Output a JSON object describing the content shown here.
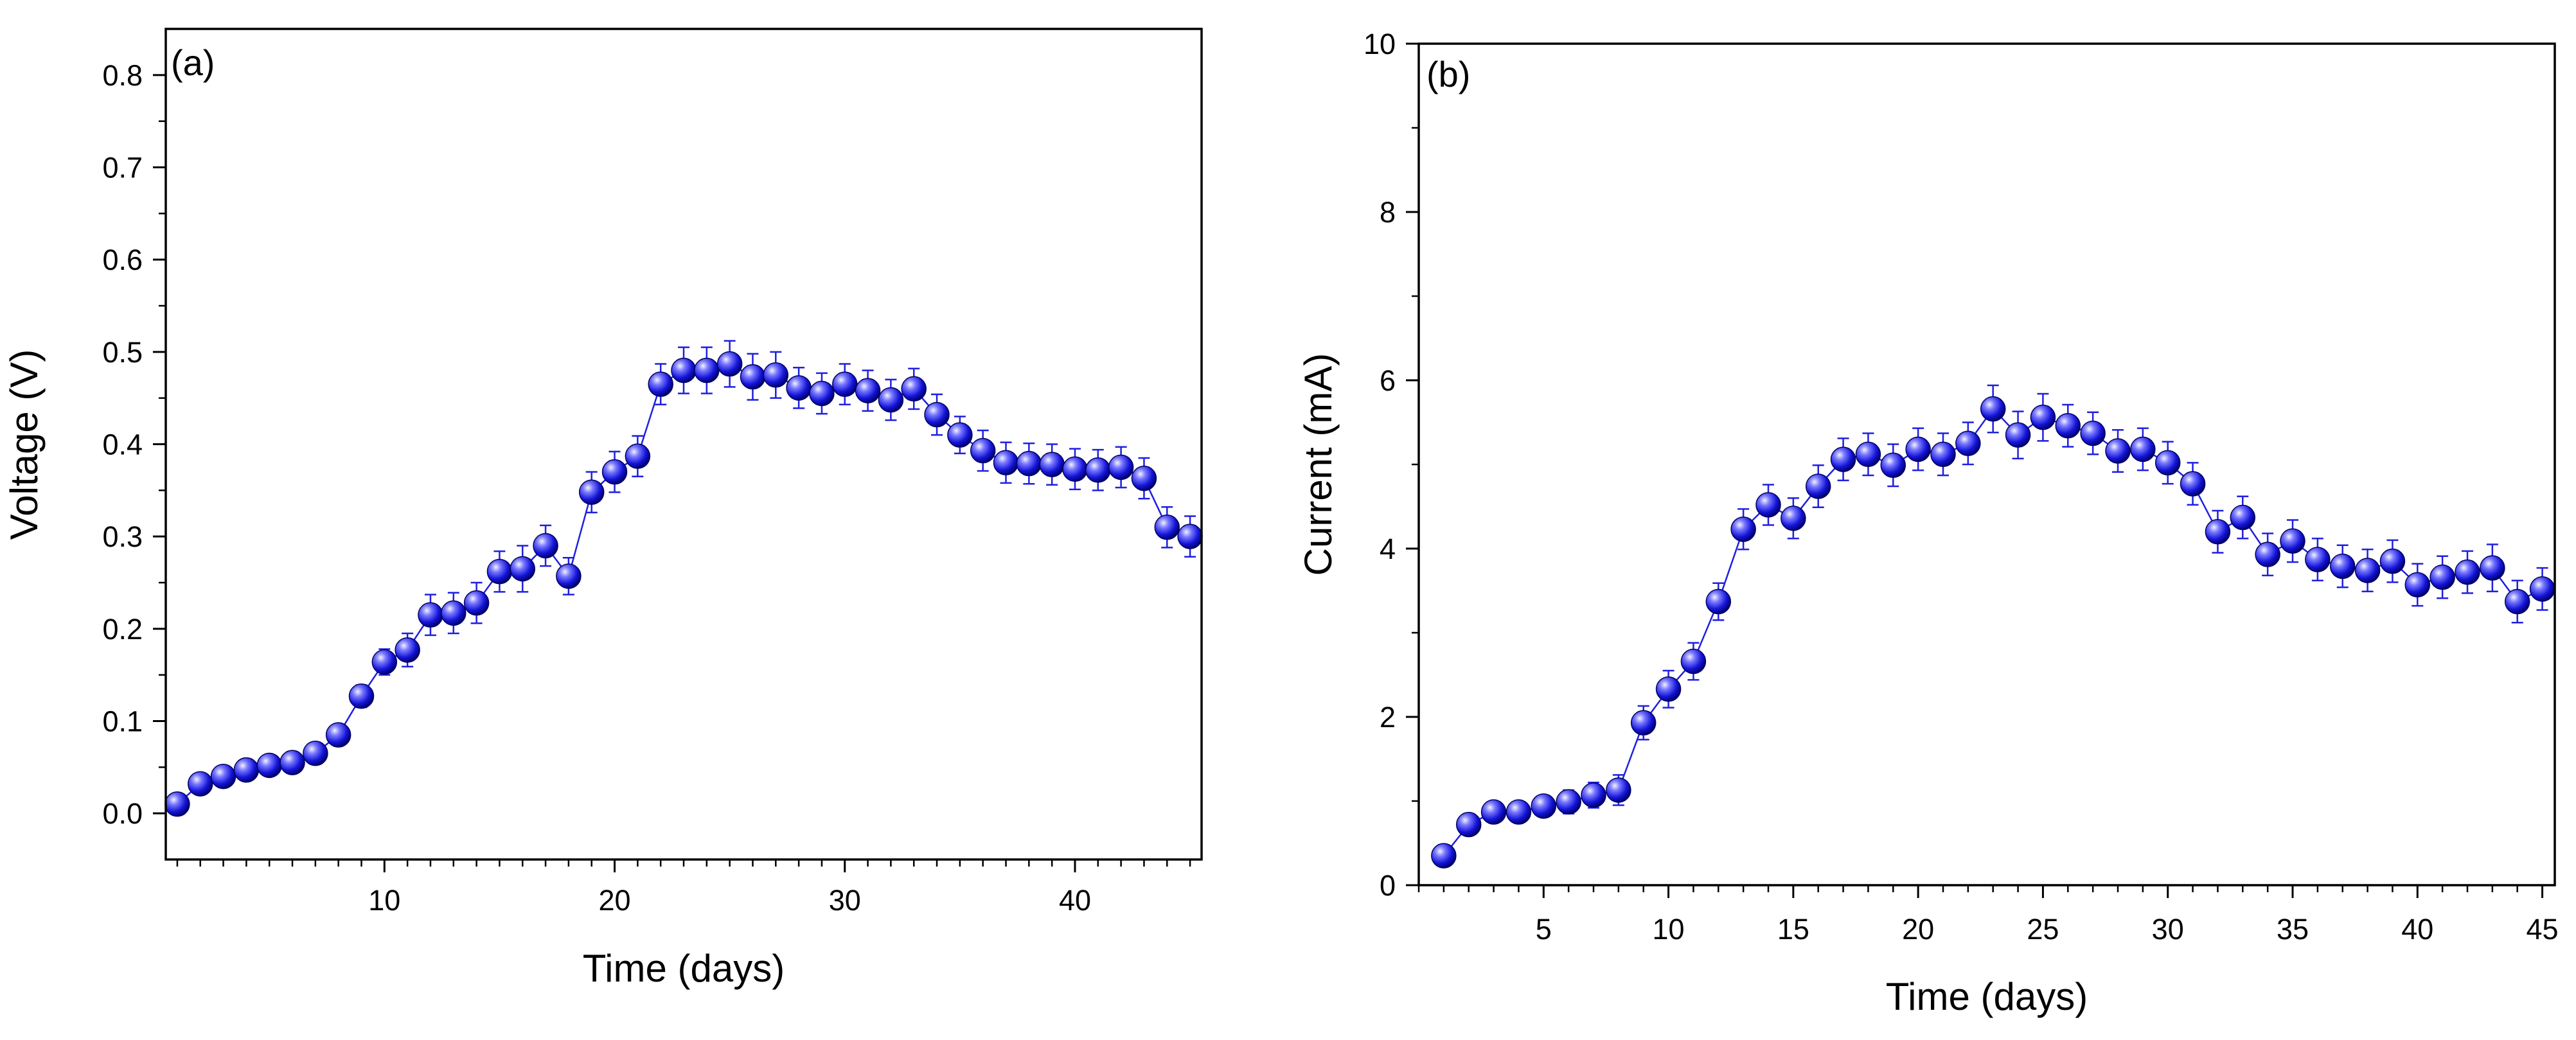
{
  "chart_data": [
    {
      "panel": "(a)",
      "type": "scatter",
      "style": "line with markers and error bars",
      "title": "",
      "xlabel": "Time (days)",
      "ylabel": "Voltage (V)",
      "xlim": [
        0.5,
        45.5
      ],
      "ylim": [
        -0.05,
        0.85
      ],
      "x_ticks": [
        10,
        20,
        30,
        40
      ],
      "x_tick_labels": [
        "10",
        "20",
        "30",
        "40"
      ],
      "y_ticks": [
        0.0,
        0.1,
        0.2,
        0.3,
        0.4,
        0.5,
        0.6,
        0.7,
        0.8
      ],
      "y_tick_labels": [
        "0.0",
        "0.1",
        "0.2",
        "0.3",
        "0.4",
        "0.5",
        "0.6",
        "0.7",
        "0.8"
      ],
      "series": [
        {
          "name": "Voltage",
          "color": "#1f1fe0",
          "x": [
            1,
            2,
            3,
            4,
            5,
            6,
            7,
            8,
            9,
            10,
            11,
            12,
            13,
            14,
            15,
            16,
            17,
            18,
            19,
            20,
            21,
            22,
            23,
            24,
            25,
            26,
            27,
            28,
            29,
            30,
            31,
            32,
            33,
            34,
            35,
            36,
            37,
            38,
            39,
            40,
            41,
            42,
            43,
            44,
            45
          ],
          "y": [
            0.01,
            0.032,
            0.04,
            0.047,
            0.052,
            0.055,
            0.065,
            0.085,
            0.127,
            0.164,
            0.177,
            0.215,
            0.217,
            0.228,
            0.262,
            0.265,
            0.29,
            0.257,
            0.348,
            0.37,
            0.387,
            0.465,
            0.48,
            0.48,
            0.487,
            0.473,
            0.475,
            0.461,
            0.455,
            0.465,
            0.458,
            0.448,
            0.46,
            0.432,
            0.41,
            0.393,
            0.38,
            0.379,
            0.378,
            0.373,
            0.372,
            0.375,
            0.363,
            0.31,
            0.3
          ],
          "error": [
            0.004,
            0.006,
            0.006,
            0.006,
            0.006,
            0.007,
            0.008,
            0.01,
            0.012,
            0.014,
            0.018,
            0.022,
            0.022,
            0.022,
            0.022,
            0.025,
            0.022,
            0.02,
            0.022,
            0.022,
            0.022,
            0.022,
            0.025,
            0.025,
            0.025,
            0.025,
            0.025,
            0.022,
            0.022,
            0.022,
            0.022,
            0.022,
            0.022,
            0.022,
            0.02,
            0.022,
            0.022,
            0.022,
            0.022,
            0.022,
            0.022,
            0.022,
            0.022,
            0.022,
            0.022
          ]
        }
      ]
    },
    {
      "panel": "(b)",
      "type": "scatter",
      "style": "line with markers and error bars",
      "title": "",
      "xlabel": "Time (days)",
      "ylabel": "Current (mA)",
      "xlim": [
        0,
        45.5
      ],
      "ylim": [
        0,
        10
      ],
      "x_ticks": [
        5,
        10,
        15,
        20,
        25,
        30,
        35,
        40,
        45
      ],
      "x_tick_labels": [
        "5",
        "10",
        "15",
        "20",
        "25",
        "30",
        "35",
        "40",
        "45"
      ],
      "y_ticks": [
        0,
        2,
        4,
        6,
        8,
        10
      ],
      "y_tick_labels": [
        "0",
        "2",
        "4",
        "6",
        "8",
        "10"
      ],
      "series": [
        {
          "name": "Current",
          "color": "#1f1fe0",
          "x": [
            1,
            2,
            3,
            4,
            5,
            6,
            7,
            8,
            9,
            10,
            11,
            12,
            13,
            14,
            15,
            16,
            17,
            18,
            19,
            20,
            21,
            22,
            23,
            24,
            25,
            26,
            27,
            28,
            29,
            30,
            31,
            32,
            33,
            34,
            35,
            36,
            37,
            38,
            39,
            40,
            41,
            42,
            43,
            44,
            45
          ],
          "y": [
            0.35,
            0.72,
            0.87,
            0.87,
            0.94,
            0.99,
            1.07,
            1.13,
            1.93,
            2.33,
            2.66,
            3.37,
            4.23,
            4.52,
            4.36,
            4.74,
            5.06,
            5.12,
            4.99,
            5.18,
            5.12,
            5.25,
            5.66,
            5.35,
            5.56,
            5.46,
            5.37,
            5.16,
            5.18,
            5.02,
            4.77,
            4.2,
            4.37,
            3.93,
            4.09,
            3.87,
            3.79,
            3.74,
            3.85,
            3.57,
            3.66,
            3.72,
            3.77,
            3.37,
            3.52
          ],
          "error": [
            0.1,
            0.12,
            0.12,
            0.12,
            0.12,
            0.14,
            0.15,
            0.18,
            0.2,
            0.22,
            0.22,
            0.22,
            0.24,
            0.24,
            0.24,
            0.25,
            0.25,
            0.25,
            0.25,
            0.25,
            0.25,
            0.25,
            0.28,
            0.28,
            0.28,
            0.25,
            0.25,
            0.25,
            0.25,
            0.25,
            0.25,
            0.25,
            0.25,
            0.25,
            0.25,
            0.25,
            0.25,
            0.25,
            0.25,
            0.25,
            0.25,
            0.25,
            0.28,
            0.25,
            0.25
          ]
        }
      ]
    }
  ]
}
